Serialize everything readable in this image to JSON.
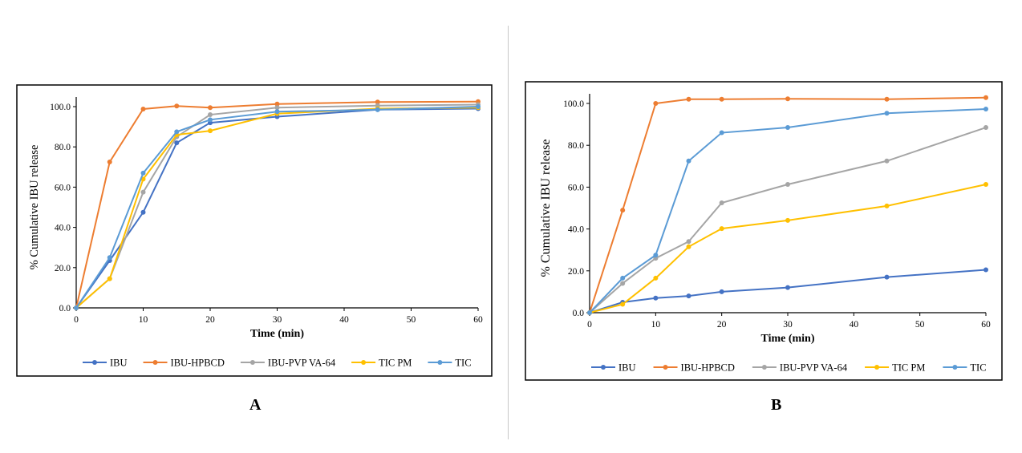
{
  "chart_data": [
    {
      "type": "line",
      "panel": "A",
      "xlabel": "Time (min)",
      "ylabel": "% Cumulative IBU release",
      "xlim": [
        0,
        60
      ],
      "ylim": [
        0,
        100
      ],
      "xticks": [
        0,
        10,
        20,
        30,
        40,
        50,
        60
      ],
      "yticks": [
        "0.0",
        "20.0",
        "40.0",
        "60.0",
        "80.0",
        "100.0"
      ],
      "grid": false,
      "legend_position": "bottom",
      "x": [
        0,
        5,
        10,
        15,
        20,
        30,
        45,
        60
      ],
      "series": [
        {
          "name": "IBU",
          "color": "#4472C4",
          "values": [
            0,
            23.5,
            47.5,
            82,
            92,
            95,
            98.5,
            99
          ]
        },
        {
          "name": "IBU-HPBCD",
          "color": "#ED7D31",
          "values": [
            0,
            72.5,
            98.8,
            100.3,
            99.5,
            101.3,
            102.3,
            102.5
          ]
        },
        {
          "name": "IBU-PVP VA-64",
          "color": "#A5A5A5",
          "values": [
            0,
            14.5,
            57.5,
            85,
            96,
            99.5,
            100.5,
            101
          ]
        },
        {
          "name": "TIC PM",
          "color": "#FFC000",
          "values": [
            0,
            14.5,
            64,
            86,
            88,
            96.5,
            99,
            99.5
          ]
        },
        {
          "name": "TIC",
          "color": "#5B9BD5",
          "values": [
            0,
            25,
            67,
            87.5,
            93.5,
            97.5,
            98.5,
            100
          ]
        }
      ]
    },
    {
      "type": "line",
      "panel": "B",
      "xlabel": "Time (min)",
      "ylabel": "% Cumulative IBU release",
      "xlim": [
        0,
        60
      ],
      "ylim": [
        0,
        100
      ],
      "xticks": [
        0,
        10,
        20,
        30,
        40,
        50,
        60
      ],
      "yticks": [
        "0.0",
        "20.0",
        "40.0",
        "60.0",
        "80.0",
        "100.0"
      ],
      "grid": false,
      "legend_position": "bottom",
      "x": [
        0,
        5,
        10,
        15,
        20,
        30,
        45,
        60
      ],
      "series": [
        {
          "name": "IBU",
          "color": "#4472C4",
          "values": [
            0,
            5,
            7,
            8,
            10,
            12,
            17,
            20.5
          ]
        },
        {
          "name": "IBU-HPBCD",
          "color": "#ED7D31",
          "values": [
            0,
            49,
            100,
            102,
            102,
            102.2,
            102,
            102.8
          ]
        },
        {
          "name": "IBU-PVP VA-64",
          "color": "#A5A5A5",
          "values": [
            0,
            14,
            26,
            34,
            52.5,
            61.3,
            72.5,
            88.5
          ]
        },
        {
          "name": "TIC PM",
          "color": "#FFC000",
          "values": [
            0,
            4,
            16.5,
            31.5,
            40.2,
            44.1,
            51,
            61.3
          ]
        },
        {
          "name": "TIC",
          "color": "#5B9BD5",
          "values": [
            0,
            16.5,
            27.5,
            72.5,
            86,
            88.5,
            95.3,
            97.3
          ]
        }
      ]
    }
  ]
}
